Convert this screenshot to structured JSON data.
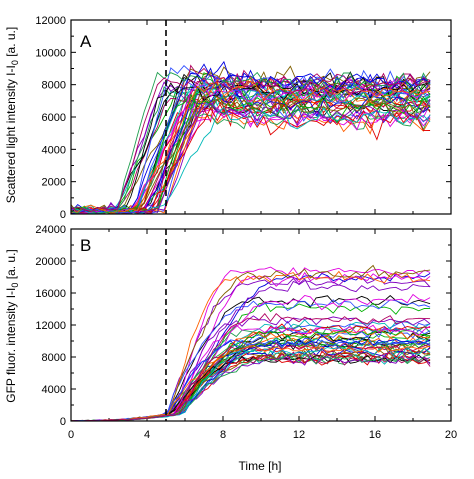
{
  "chart_data": [
    {
      "panel_label": "A",
      "type": "line",
      "ylabel": "Scattered light intensity I-I",
      "ylabel_sub": "0",
      "ylabel_unit": "[a. u.]",
      "xlim": [
        0,
        20
      ],
      "ylim": [
        0,
        12000
      ],
      "yticks": [
        0,
        2000,
        4000,
        6000,
        8000,
        10000,
        12000
      ],
      "ytick_labels": [
        "0",
        "2000",
        "4000",
        "6000",
        "8000",
        "10000",
        "12000"
      ],
      "xticks": [
        0,
        4,
        8,
        12,
        16,
        20
      ],
      "vline_x": 5,
      "series_count": 48,
      "series_summary": {
        "x_range": [
          0,
          19
        ],
        "start_value": 200,
        "rise_onset_range": [
          2,
          5
        ],
        "plateau_range": [
          5800,
          8300
        ],
        "noisy_plateau": true,
        "max_spike": 10000
      }
    },
    {
      "panel_label": "B",
      "type": "line",
      "ylabel": "GFP fluor. intensity I-I",
      "ylabel_sub": "0",
      "ylabel_unit": "[a. u.]",
      "xlabel": "Time",
      "xlabel_unit": "[h]",
      "xlim": [
        0,
        20
      ],
      "ylim": [
        0,
        24000
      ],
      "yticks": [
        0,
        4000,
        8000,
        12000,
        16000,
        20000,
        24000
      ],
      "ytick_labels": [
        "0",
        "4000",
        "8000",
        "12000",
        "16000",
        "20000",
        "24000"
      ],
      "xticks": [
        0,
        4,
        8,
        12,
        16,
        20
      ],
      "xtick_labels": [
        "0",
        "4",
        "8",
        "12",
        "16",
        "20"
      ],
      "vline_x": 5,
      "series_count": 48,
      "series_summary": {
        "x_range": [
          0,
          19
        ],
        "start_value": 0,
        "rise_onset_range": [
          5,
          6
        ],
        "plateau_range": [
          7600,
          19000
        ],
        "noisy_plateau": true
      }
    }
  ],
  "colors": {
    "palette": [
      "#000000",
      "#e00000",
      "#0000e0",
      "#00b000",
      "#e000e0",
      "#00b8b8",
      "#8000c0",
      "#806000",
      "#3050ff",
      "#ff6000",
      "#20a050",
      "#b00060"
    ],
    "axes": "#000000",
    "vline": "#000000"
  }
}
